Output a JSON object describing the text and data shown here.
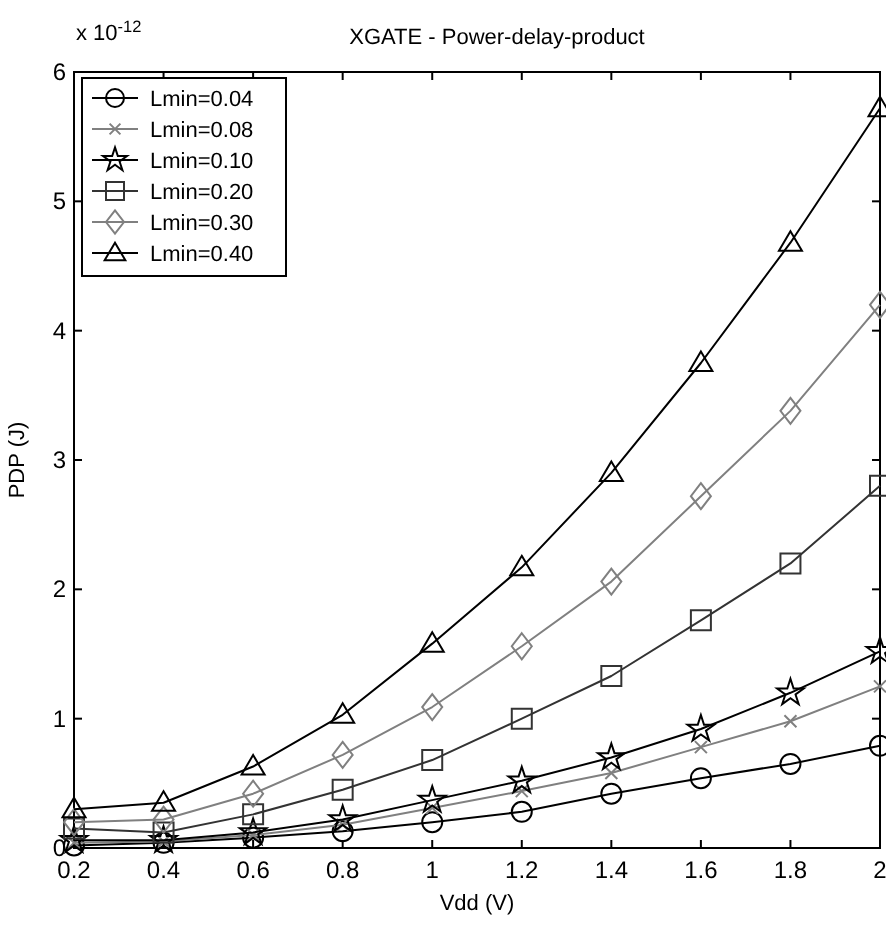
{
  "chart_data": {
    "type": "line",
    "title": "XGATE - Power-delay-product",
    "xlabel": "Vdd (V)",
    "ylabel": "PDP (J)",
    "annotations": [
      "x 10$^{-12}$"
    ],
    "x": [
      0.2,
      0.4,
      0.6,
      0.8,
      1.0,
      1.2,
      1.4,
      1.6,
      1.8,
      2.0
    ],
    "xlim": [
      0.2,
      2
    ],
    "xticks": [
      0.2,
      0.4,
      0.6,
      0.8,
      1,
      1.2,
      1.4,
      1.6,
      1.8,
      2
    ],
    "ylim": [
      0,
      6
    ],
    "yticks": [
      0,
      1,
      2,
      3,
      4,
      5,
      6
    ],
    "grid": false,
    "legend": "top left",
    "line_style": "solid",
    "series": [
      {
        "name": "Lmin=0.04",
        "color": "#000000",
        "marker": "circle",
        "values": [
          0.02,
          0.04,
          0.08,
          0.13,
          0.2,
          0.28,
          0.42,
          0.54,
          0.65,
          0.79
        ]
      },
      {
        "name": "Lmin=0.08",
        "color": "#808080",
        "marker": "cross",
        "values": [
          0.04,
          0.05,
          0.1,
          0.18,
          0.31,
          0.44,
          0.58,
          0.78,
          0.98,
          1.25
        ]
      },
      {
        "name": "Lmin=0.10",
        "color": "#000000",
        "marker": "star",
        "values": [
          0.06,
          0.06,
          0.12,
          0.22,
          0.37,
          0.52,
          0.7,
          0.92,
          1.2,
          1.52
        ]
      },
      {
        "name": "Lmin=0.20",
        "color": "#333333",
        "marker": "square",
        "values": [
          0.15,
          0.12,
          0.26,
          0.45,
          0.68,
          1.0,
          1.33,
          1.76,
          2.2,
          2.8
        ]
      },
      {
        "name": "Lmin=0.30",
        "color": "#808080",
        "marker": "diamond",
        "values": [
          0.2,
          0.22,
          0.42,
          0.72,
          1.09,
          1.56,
          2.06,
          2.72,
          3.38,
          4.2
        ]
      },
      {
        "name": "Lmin=0.40",
        "color": "#000000",
        "marker": "triangle",
        "values": [
          0.3,
          0.35,
          0.63,
          1.03,
          1.58,
          2.17,
          2.9,
          3.75,
          4.68,
          5.72
        ]
      }
    ]
  }
}
